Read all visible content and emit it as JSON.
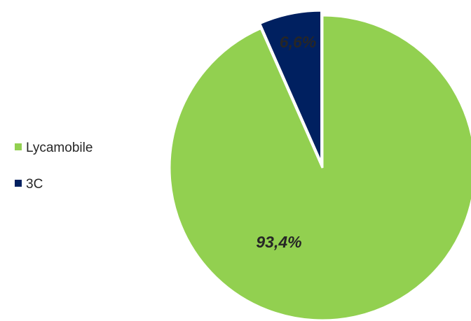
{
  "chart_data": {
    "type": "pie",
    "categories": [
      "Lycamobile",
      "3C"
    ],
    "values": [
      93.4,
      6.6
    ],
    "data_labels": [
      "93,4%",
      "6,6%"
    ],
    "colors": [
      "#92d050",
      "#002060"
    ],
    "exploded": "3C",
    "legend_position": "left"
  }
}
